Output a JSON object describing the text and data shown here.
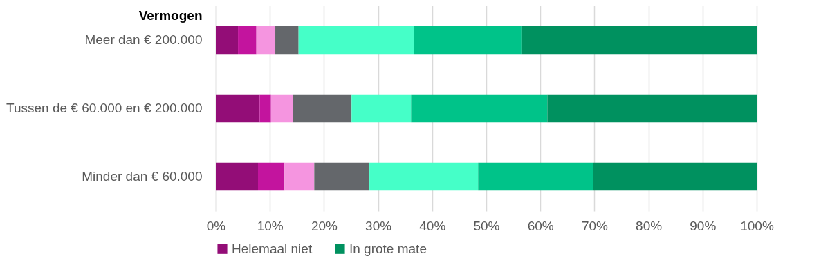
{
  "chart_data": {
    "type": "bar",
    "orientation": "horizontal",
    "stacked": true,
    "ylabel": "Vermogen",
    "categories": [
      "Meer dan € 200.000",
      "Tussen de € 60.000 en € 200.000",
      "Minder dan € 60.000"
    ],
    "series": [
      {
        "name": "Helemaal niet",
        "color": "#930d77",
        "values": [
          4.1,
          8.1,
          7.8
        ]
      },
      {
        "color": "#c3149e",
        "values": [
          3.4,
          2.1,
          4.9
        ]
      },
      {
        "color": "#f595e0",
        "values": [
          3.5,
          4.0,
          5.5
        ]
      },
      {
        "color": "#64676b",
        "values": [
          4.3,
          10.9,
          10.2
        ]
      },
      {
        "color": "#45ffc8",
        "values": [
          21.4,
          11.0,
          20.1
        ]
      },
      {
        "color": "#00c389",
        "values": [
          19.8,
          25.2,
          21.3
        ]
      },
      {
        "name": "In grote mate",
        "color": "#00915f",
        "values": [
          43.5,
          38.7,
          30.2
        ]
      }
    ],
    "xlim": [
      0,
      100
    ],
    "xticks": [
      {
        "value": 0,
        "label": "0%"
      },
      {
        "value": 10,
        "label": "10%"
      },
      {
        "value": 20,
        "label": "20%"
      },
      {
        "value": 30,
        "label": "30%"
      },
      {
        "value": 40,
        "label": "40%"
      },
      {
        "value": 50,
        "label": "50%"
      },
      {
        "value": 60,
        "label": "60%"
      },
      {
        "value": 70,
        "label": "70%"
      },
      {
        "value": 80,
        "label": "80%"
      },
      {
        "value": 90,
        "label": "90%"
      },
      {
        "value": 100,
        "label": "100%"
      }
    ],
    "grid": "x",
    "legend": "bottom"
  }
}
